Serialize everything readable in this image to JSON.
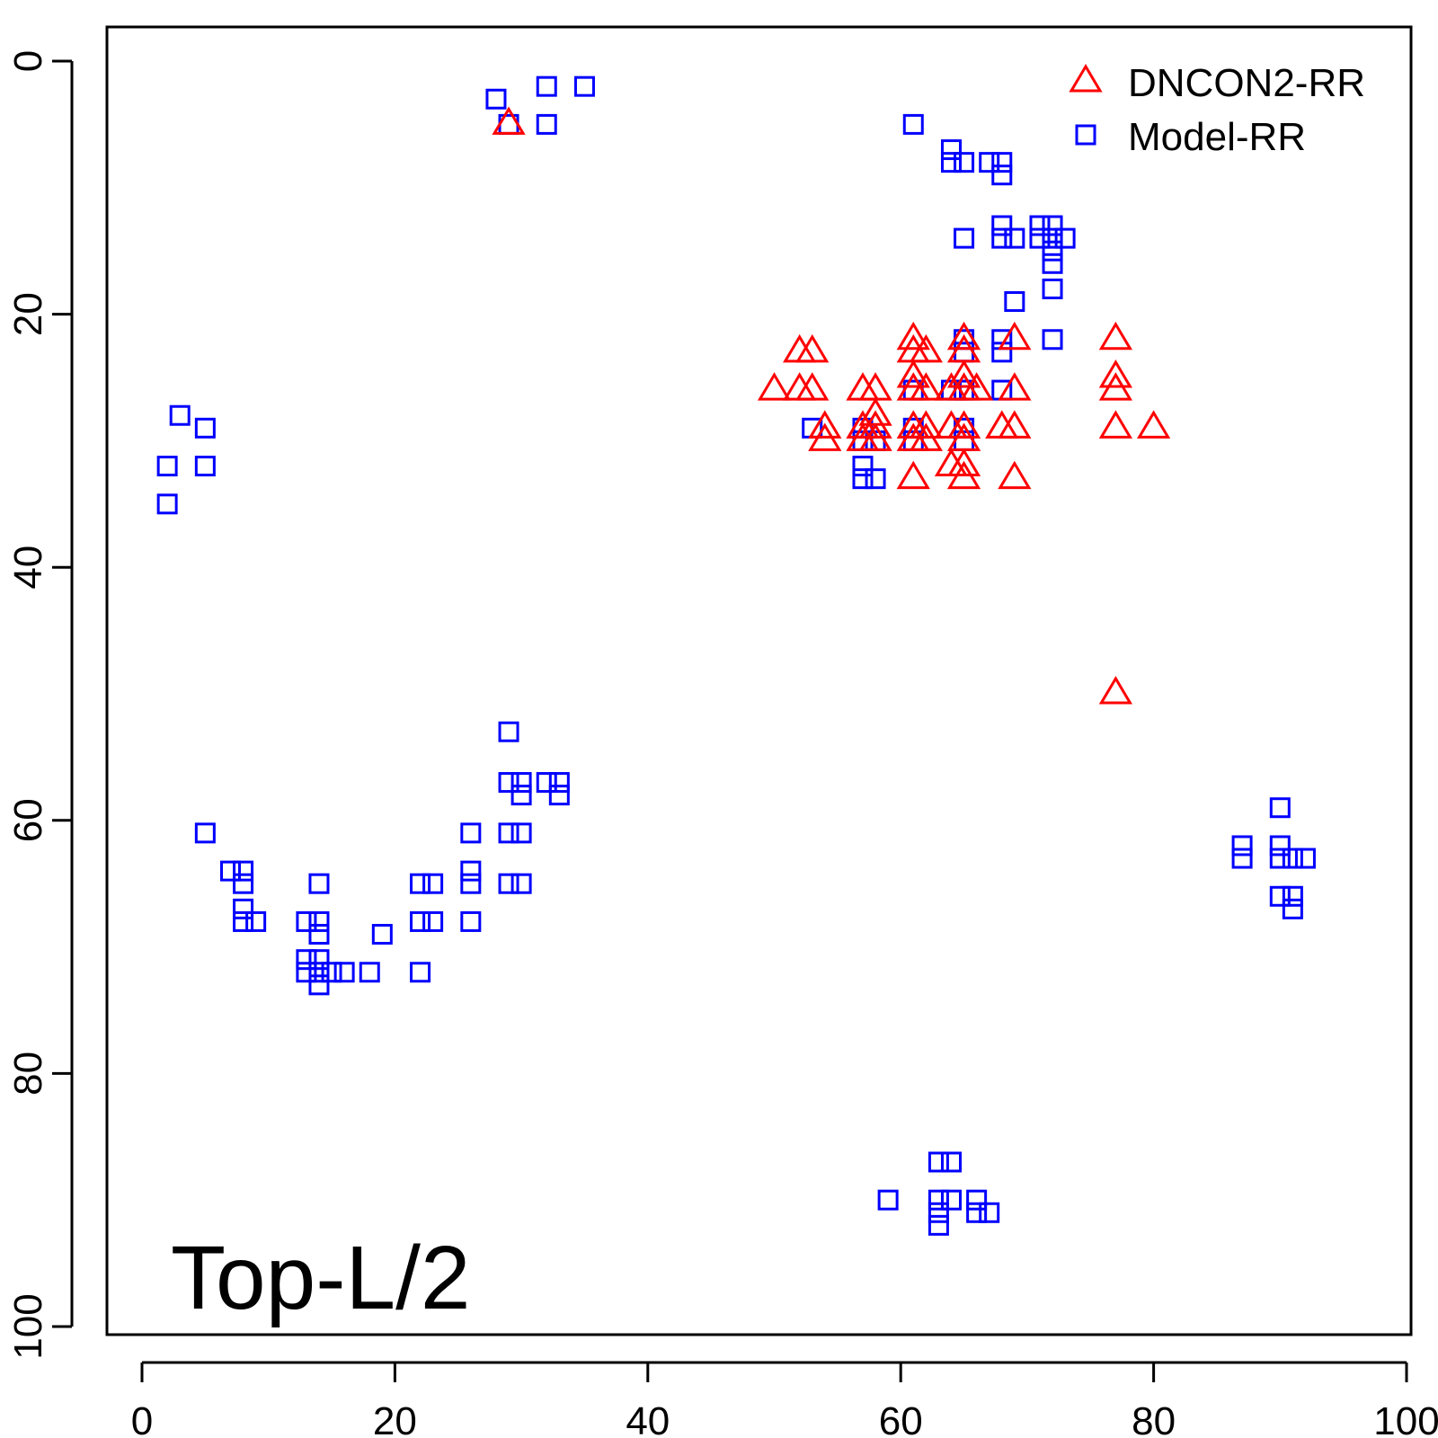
{
  "chart_data": {
    "type": "scatter",
    "annotation": "Top-L/2",
    "xlim": [
      -3,
      101
    ],
    "ylim": [
      0,
      100
    ],
    "y_reversed": true,
    "x_ticks": [
      "0",
      "20",
      "40",
      "60",
      "80",
      "100"
    ],
    "y_ticks": [
      "0",
      "20",
      "40",
      "60",
      "80",
      "100"
    ],
    "legend_position": "top-right",
    "grid": false,
    "series": [
      {
        "name": "DNCON2-RR",
        "marker": "triangle",
        "color": "#ff0000",
        "points": [
          [
            29,
            5
          ],
          [
            50,
            26
          ],
          [
            52,
            23
          ],
          [
            53,
            23
          ],
          [
            52,
            26
          ],
          [
            53,
            26
          ],
          [
            54,
            29
          ],
          [
            54,
            30
          ],
          [
            57,
            26
          ],
          [
            57,
            29
          ],
          [
            57,
            30
          ],
          [
            58,
            26
          ],
          [
            58,
            28
          ],
          [
            58,
            29
          ],
          [
            58,
            30
          ],
          [
            61,
            22
          ],
          [
            61,
            23
          ],
          [
            61,
            25
          ],
          [
            61,
            26
          ],
          [
            61,
            29
          ],
          [
            61,
            30
          ],
          [
            61,
            33
          ],
          [
            62,
            23
          ],
          [
            62,
            26
          ],
          [
            62,
            29
          ],
          [
            62,
            30
          ],
          [
            64,
            26
          ],
          [
            64,
            29
          ],
          [
            64,
            32
          ],
          [
            65,
            22
          ],
          [
            65,
            23
          ],
          [
            65,
            25
          ],
          [
            65,
            26
          ],
          [
            65,
            29
          ],
          [
            65,
            30
          ],
          [
            65,
            32
          ],
          [
            65,
            33
          ],
          [
            66,
            26
          ],
          [
            68,
            29
          ],
          [
            69,
            22
          ],
          [
            69,
            26
          ],
          [
            69,
            29
          ],
          [
            69,
            33
          ],
          [
            77,
            22
          ],
          [
            77,
            25
          ],
          [
            77,
            26
          ],
          [
            77,
            29
          ],
          [
            77,
            50
          ],
          [
            80,
            29
          ]
        ]
      },
      {
        "name": "Model-RR",
        "marker": "square",
        "color": "#0000ff",
        "points": [
          [
            28,
            3
          ],
          [
            29,
            5
          ],
          [
            32,
            2
          ],
          [
            32,
            5
          ],
          [
            35,
            2
          ],
          [
            3,
            28
          ],
          [
            5,
            29
          ],
          [
            2,
            32
          ],
          [
            5,
            32
          ],
          [
            2,
            35
          ],
          [
            61,
            5
          ],
          [
            64,
            7
          ],
          [
            64,
            8
          ],
          [
            65,
            8
          ],
          [
            67,
            8
          ],
          [
            68,
            8
          ],
          [
            68,
            9
          ],
          [
            68,
            13
          ],
          [
            68,
            14
          ],
          [
            69,
            14
          ],
          [
            71,
            13
          ],
          [
            72,
            13
          ],
          [
            71,
            14
          ],
          [
            72,
            14
          ],
          [
            73,
            14
          ],
          [
            72,
            15
          ],
          [
            72,
            16
          ],
          [
            65,
            14
          ],
          [
            69,
            19
          ],
          [
            72,
            18
          ],
          [
            72,
            22
          ],
          [
            65,
            22
          ],
          [
            65,
            23
          ],
          [
            68,
            22
          ],
          [
            68,
            23
          ],
          [
            68,
            26
          ],
          [
            61,
            26
          ],
          [
            64,
            26
          ],
          [
            65,
            26
          ],
          [
            53,
            29
          ],
          [
            57,
            29
          ],
          [
            57,
            30
          ],
          [
            58,
            30
          ],
          [
            61,
            29
          ],
          [
            61,
            30
          ],
          [
            65,
            29
          ],
          [
            65,
            30
          ],
          [
            57,
            32
          ],
          [
            57,
            33
          ],
          [
            58,
            33
          ],
          [
            29,
            53
          ],
          [
            29,
            57
          ],
          [
            30,
            57
          ],
          [
            30,
            58
          ],
          [
            32,
            57
          ],
          [
            33,
            57
          ],
          [
            33,
            58
          ],
          [
            5,
            61
          ],
          [
            26,
            61
          ],
          [
            29,
            61
          ],
          [
            30,
            61
          ],
          [
            7,
            64
          ],
          [
            8,
            64
          ],
          [
            8,
            65
          ],
          [
            8,
            67
          ],
          [
            8,
            68
          ],
          [
            9,
            68
          ],
          [
            14,
            65
          ],
          [
            22,
            65
          ],
          [
            23,
            65
          ],
          [
            26,
            64
          ],
          [
            26,
            65
          ],
          [
            29,
            65
          ],
          [
            30,
            65
          ],
          [
            13,
            68
          ],
          [
            14,
            68
          ],
          [
            14,
            69
          ],
          [
            22,
            68
          ],
          [
            23,
            68
          ],
          [
            26,
            68
          ],
          [
            19,
            69
          ],
          [
            13,
            71
          ],
          [
            14,
            71
          ],
          [
            13,
            72
          ],
          [
            14,
            72
          ],
          [
            15,
            72
          ],
          [
            16,
            72
          ],
          [
            18,
            72
          ],
          [
            22,
            72
          ],
          [
            14,
            73
          ],
          [
            90,
            59
          ],
          [
            87,
            62
          ],
          [
            87,
            63
          ],
          [
            90,
            62
          ],
          [
            90,
            63
          ],
          [
            91,
            63
          ],
          [
            92,
            63
          ],
          [
            90,
            66
          ],
          [
            91,
            66
          ],
          [
            91,
            67
          ],
          [
            63,
            87
          ],
          [
            64,
            87
          ],
          [
            59,
            90
          ],
          [
            63,
            90
          ],
          [
            64,
            90
          ],
          [
            63,
            91
          ],
          [
            63,
            92
          ],
          [
            66,
            90
          ],
          [
            66,
            91
          ],
          [
            67,
            91
          ]
        ]
      }
    ]
  }
}
